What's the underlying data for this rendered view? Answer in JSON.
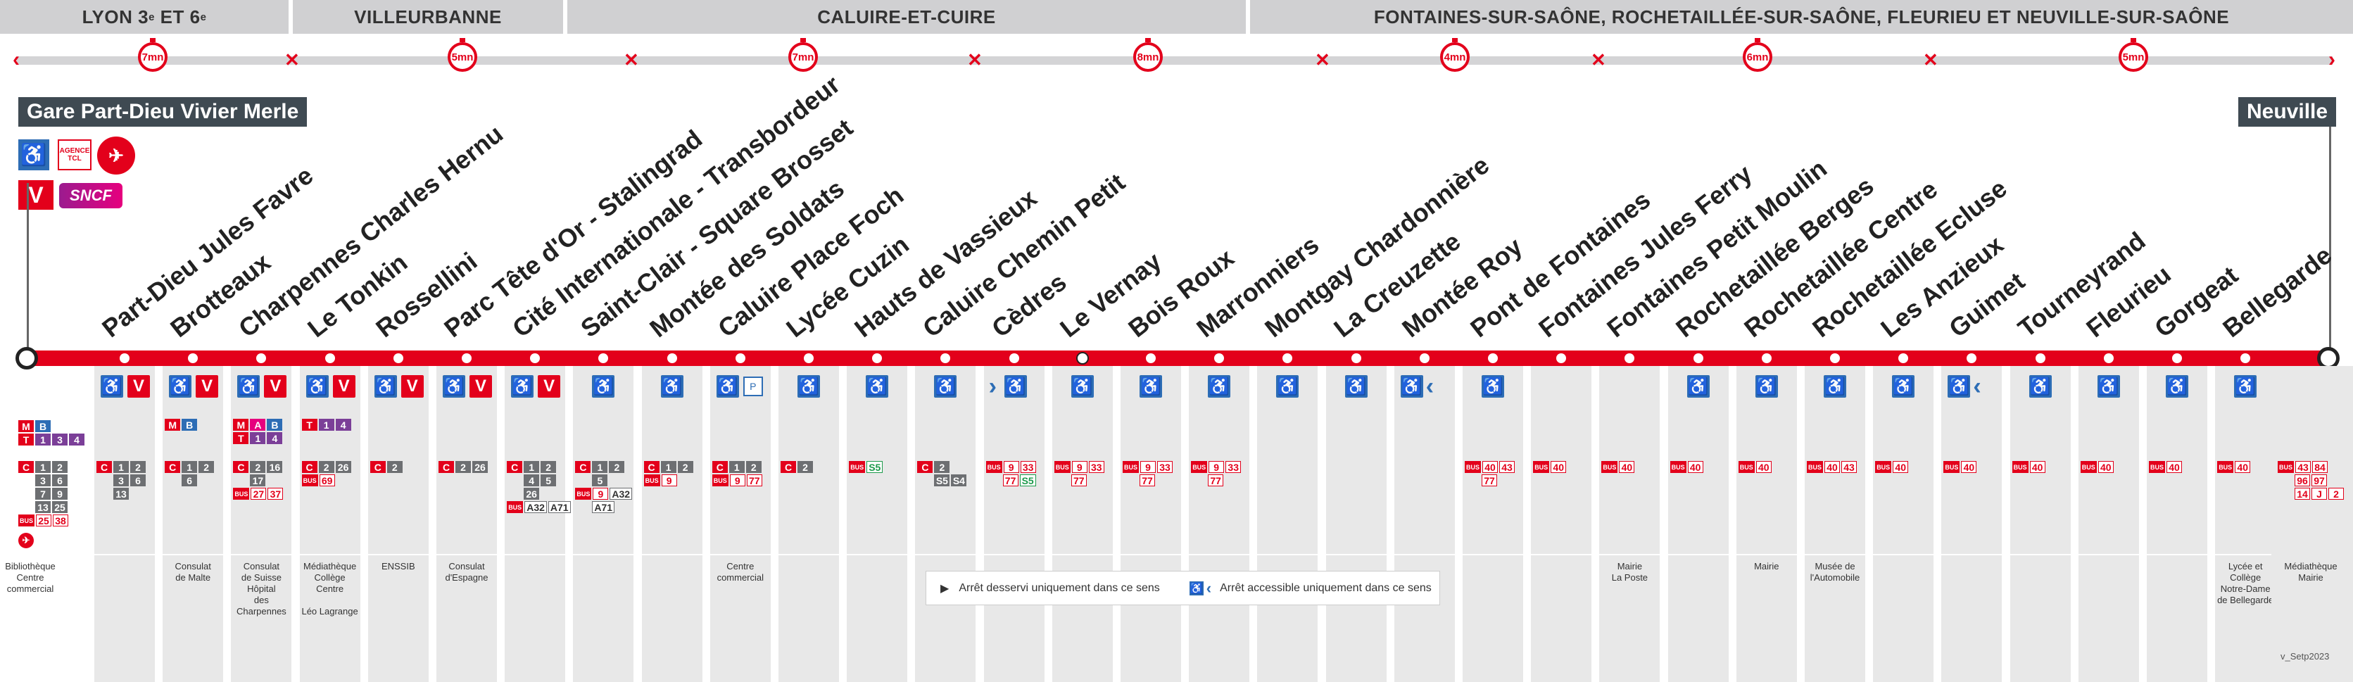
{
  "zones": [
    {
      "name": "LYON 3",
      "sup1": "e",
      "mid": " ET 6",
      "sup2": "e"
    },
    {
      "name": "VILLEURBANNE"
    },
    {
      "name": "CALUIRE-ET-CUIRE"
    },
    {
      "name": "FONTAINES-SUR-SAÔNE, ROCHETAILLÉE-SUR-SAÔNE, FLEURIEU ET NEUVILLE-SUR-SAÔNE"
    }
  ],
  "travel_times": [
    "7mn",
    "5mn",
    "7mn",
    "8mn",
    "4mn",
    "6mn",
    "5mn"
  ],
  "terminus": {
    "left": "Gare Part-Dieu Vivier Merle",
    "right": "Neuville"
  },
  "left_logos": {
    "accessible": "accessible-icon",
    "agence": "AGENCE TCL",
    "airport": "plane-icon",
    "rail_v": "V",
    "sncf": "SNCF"
  },
  "stations": [
    "Part-Dieu Jules Favre",
    "Brotteaux",
    "Charpennes Charles Hernu",
    "Le Tonkin",
    "Rossellini",
    "Parc Tête d'Or - Stalingrad",
    "Cité Internationale -  Transbordeur",
    "Saint-Clair - Square Brosset",
    "Montée des Soldats",
    "Caluire Place Foch",
    "Lycée Cuzin",
    "Hauts de Vassieux",
    "Caluire Chemin Petit",
    "Cèdres",
    "Le Vernay",
    "Bois Roux",
    "Marronniers",
    "Montgay Chardonnière",
    "La Creuzette",
    "Montée Roy",
    "Pont de Fontaines",
    "Fontaines Jules Ferry",
    "Fontaines Petit Moulin",
    "Rochetaillée Berges",
    "Rochetaillée Centre",
    "Rochetaillée Ecluse",
    "Les Anzieux",
    "Guimet",
    "Tourneyrand",
    "Fleurieu",
    "Gorgeat",
    "Bellegarde"
  ],
  "left_connections": {
    "metro": [
      "M",
      "B"
    ],
    "tram": [
      "T",
      "1",
      "3",
      "4"
    ],
    "c_rows": [
      [
        "C",
        "1",
        "2"
      ],
      [
        "",
        "3",
        "6"
      ],
      [
        "",
        "7",
        "9"
      ],
      [
        "",
        "13",
        "25"
      ]
    ],
    "bus": [
      "BUS",
      "25",
      "38"
    ],
    "poi": "Bibliothèque\nCentre\ncommercial"
  },
  "right_connections": {
    "rows": [
      [
        "BUS",
        "43",
        "84"
      ],
      [
        "",
        "96",
        "97"
      ],
      [
        "",
        "14",
        "J",
        "2"
      ]
    ],
    "poi": "Médiathèque\nMairie"
  },
  "columns": [
    {
      "acc": true,
      "v": true,
      "top": [],
      "rows": [
        [
          "C",
          "1",
          "2"
        ],
        [
          "",
          "3",
          "6"
        ],
        [
          "",
          "13"
        ]
      ],
      "poi": ""
    },
    {
      "acc": true,
      "v": true,
      "top": [
        [
          "M",
          "B"
        ]
      ],
      "rows": [
        [
          "C",
          "1",
          "2"
        ],
        [
          "",
          "6"
        ]
      ],
      "poi": "Consulat\nde Malte"
    },
    {
      "acc": true,
      "v": true,
      "top": [
        [
          "M",
          "A",
          "B"
        ],
        [
          "T",
          "1",
          "4"
        ]
      ],
      "rows": [
        [
          "C",
          "2",
          "16"
        ],
        [
          "",
          "17"
        ],
        [
          "BUS",
          "27",
          "37"
        ]
      ],
      "poi": "Consulat\nde Suisse\nHôpital\ndes Charpennes"
    },
    {
      "acc": true,
      "v": true,
      "top": [
        [
          "T",
          "1",
          "4"
        ]
      ],
      "rows": [
        [
          "C",
          "2",
          "26"
        ],
        [
          "BUS",
          "69"
        ]
      ],
      "poi": "Médiathèque\nCollège\nCentre\n\nLéo Lagrange"
    },
    {
      "acc": true,
      "v": true,
      "top": [],
      "rows": [
        [
          "C",
          "2"
        ]
      ],
      "poi": "ENSSIB"
    },
    {
      "acc": true,
      "v": true,
      "top": [],
      "rows": [
        [
          "C",
          "2",
          "26"
        ]
      ],
      "poi": "Consulat\nd'Espagne"
    },
    {
      "acc": true,
      "v": true,
      "top": [],
      "rows": [
        [
          "C",
          "1",
          "2"
        ],
        [
          "",
          "4",
          "5"
        ],
        [
          "",
          "26"
        ],
        [
          "BUS",
          "A32",
          "A71"
        ]
      ],
      "poi": ""
    },
    {
      "acc": true,
      "v": false,
      "top": [],
      "rows": [
        [
          "C",
          "1",
          "2"
        ],
        [
          "",
          "5"
        ],
        [
          "BUS",
          "9",
          "A32"
        ],
        [
          "",
          "A71"
        ]
      ],
      "poi": ""
    },
    {
      "acc": true,
      "v": false,
      "top": [],
      "rows": [
        [
          "C",
          "1",
          "2"
        ],
        [
          "BUS",
          "9"
        ]
      ],
      "poi": ""
    },
    {
      "acc": true,
      "v": false,
      "fchip": "P+R",
      "top": [],
      "rows": [
        [
          "C",
          "1",
          "2"
        ],
        [
          "BUS",
          "9",
          "77"
        ]
      ],
      "poi": "Centre\ncommercial"
    },
    {
      "acc": true,
      "v": false,
      "top": [],
      "rows": [
        [
          "C",
          "2"
        ]
      ],
      "poi": ""
    },
    {
      "acc": true,
      "v": false,
      "top": [],
      "rows": [
        [
          "BUS",
          "S5"
        ]
      ],
      "poi": ""
    },
    {
      "acc": true,
      "v": false,
      "top": [],
      "rows": [
        [
          "C",
          "2"
        ],
        [
          "",
          "S5",
          "S4"
        ]
      ],
      "poi": ""
    },
    {
      "acc": true,
      "v": false,
      "chevL": true,
      "top": [],
      "rows": [
        [
          "BUS",
          "9",
          "33"
        ],
        [
          "",
          "77",
          "S5"
        ]
      ],
      "poi": ""
    },
    {
      "acc": true,
      "v": false,
      "top": [],
      "rows": [
        [
          "BUS",
          "9",
          "33"
        ],
        [
          "",
          "77"
        ]
      ],
      "poi": ""
    },
    {
      "acc": true,
      "v": false,
      "top": [],
      "rows": [
        [
          "BUS",
          "9",
          "33"
        ],
        [
          "",
          "77"
        ]
      ],
      "poi": ""
    },
    {
      "acc": true,
      "v": false,
      "top": [],
      "rows": [
        [
          "BUS",
          "9",
          "33"
        ],
        [
          "",
          "77"
        ]
      ],
      "poi": ""
    },
    {
      "acc": true,
      "v": false,
      "top": [],
      "rows": [],
      "poi": ""
    },
    {
      "acc": true,
      "v": false,
      "top": [],
      "rows": [],
      "poi": ""
    },
    {
      "acc": true,
      "v": false,
      "chevR": true,
      "top": [],
      "rows": [],
      "poi": ""
    },
    {
      "acc": true,
      "v": false,
      "top": [],
      "rows": [
        [
          "BUS",
          "40",
          "43"
        ],
        [
          "",
          "77"
        ]
      ],
      "poi": ""
    },
    {
      "acc": false,
      "v": false,
      "top": [],
      "rows": [
        [
          "BUS",
          "40"
        ]
      ],
      "poi": ""
    },
    {
      "acc": false,
      "v": false,
      "top": [],
      "rows": [
        [
          "BUS",
          "40"
        ]
      ],
      "poi": "Mairie\nLa Poste"
    },
    {
      "acc": true,
      "v": false,
      "top": [],
      "rows": [
        [
          "BUS",
          "40"
        ]
      ],
      "poi": ""
    },
    {
      "acc": true,
      "v": false,
      "top": [],
      "rows": [
        [
          "BUS",
          "40"
        ]
      ],
      "poi": "Mairie"
    },
    {
      "acc": true,
      "v": false,
      "top": [],
      "rows": [
        [
          "BUS",
          "40",
          "43"
        ]
      ],
      "poi": "Musée de\nl'Automobile"
    },
    {
      "acc": true,
      "v": false,
      "top": [],
      "rows": [
        [
          "BUS",
          "40"
        ]
      ],
      "poi": ""
    },
    {
      "acc": true,
      "v": false,
      "chevR": true,
      "top": [],
      "rows": [
        [
          "BUS",
          "40"
        ]
      ],
      "poi": ""
    },
    {
      "acc": true,
      "v": false,
      "top": [],
      "rows": [
        [
          "BUS",
          "40"
        ]
      ],
      "poi": ""
    },
    {
      "acc": true,
      "v": false,
      "top": [],
      "rows": [
        [
          "BUS",
          "40"
        ]
      ],
      "poi": ""
    },
    {
      "acc": true,
      "v": false,
      "top": [],
      "rows": [
        [
          "BUS",
          "40"
        ]
      ],
      "poi": ""
    },
    {
      "acc": true,
      "v": false,
      "top": [],
      "rows": [
        [
          "BUS",
          "40"
        ]
      ],
      "poi": "Lycée et Collège\nNotre-Dame\nde Bellegarde"
    }
  ],
  "legend": {
    "one_way": "Arrêt desservi uniquement dans ce sens",
    "accessible_one_way": "Arrêt accessible uniquement dans ce sens"
  },
  "version": "v_Setp2023",
  "colors": {
    "line_red": "#e3001b",
    "grey": "#d0d0d2",
    "access_blue": "#2d6db5",
    "dark": "#3f4a52"
  }
}
